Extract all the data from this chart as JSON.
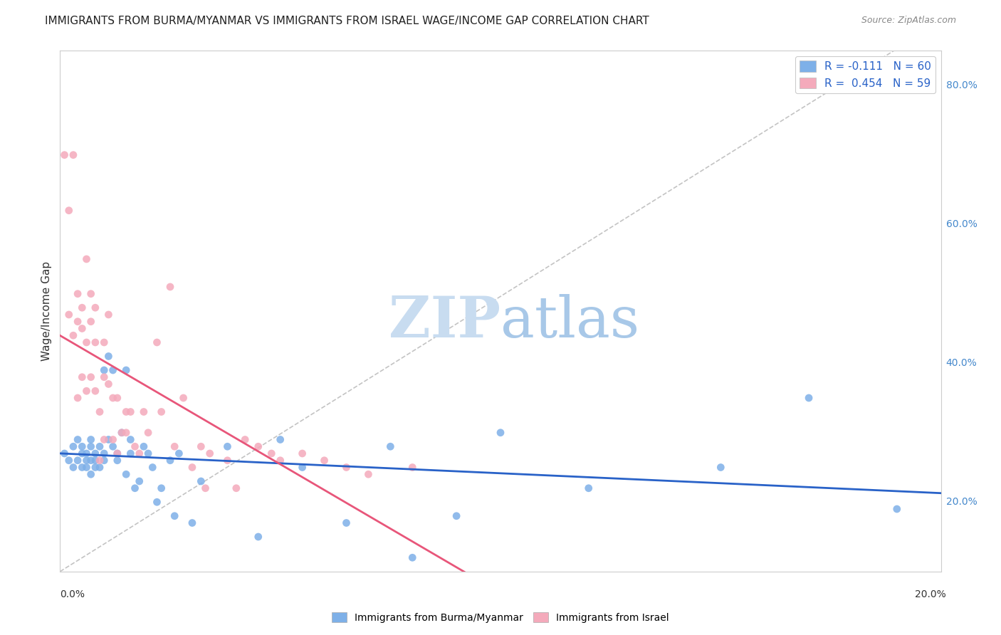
{
  "title": "IMMIGRANTS FROM BURMA/MYANMAR VS IMMIGRANTS FROM ISRAEL WAGE/INCOME GAP CORRELATION CHART",
  "source": "Source: ZipAtlas.com",
  "ylabel_label": "Wage/Income Gap",
  "legend_label_blue": "Immigrants from Burma/Myanmar",
  "legend_label_pink": "Immigrants from Israel",
  "blue_color": "#7EB0E8",
  "pink_color": "#F4AABB",
  "blue_trend_color": "#2962C8",
  "pink_trend_color": "#E8567A",
  "watermark_zip": "ZIP",
  "watermark_atlas": "atlas",
  "watermark_color": "#C8DCF0",
  "background_color": "#FFFFFF",
  "grid_color": "#CCCCCC",
  "x_min": 0.0,
  "x_max": 0.2,
  "y_min": 0.1,
  "y_max": 0.85,
  "blue_scatter_x": [
    0.001,
    0.002,
    0.003,
    0.003,
    0.004,
    0.004,
    0.005,
    0.005,
    0.005,
    0.006,
    0.006,
    0.006,
    0.007,
    0.007,
    0.007,
    0.007,
    0.008,
    0.008,
    0.008,
    0.009,
    0.009,
    0.01,
    0.01,
    0.01,
    0.011,
    0.011,
    0.012,
    0.012,
    0.013,
    0.013,
    0.014,
    0.015,
    0.015,
    0.016,
    0.016,
    0.017,
    0.018,
    0.019,
    0.02,
    0.021,
    0.022,
    0.023,
    0.025,
    0.026,
    0.027,
    0.03,
    0.032,
    0.038,
    0.045,
    0.05,
    0.055,
    0.065,
    0.075,
    0.08,
    0.09,
    0.1,
    0.12,
    0.15,
    0.17,
    0.19
  ],
  "blue_scatter_y": [
    0.27,
    0.26,
    0.28,
    0.25,
    0.29,
    0.26,
    0.27,
    0.25,
    0.28,
    0.26,
    0.25,
    0.27,
    0.28,
    0.26,
    0.24,
    0.29,
    0.27,
    0.25,
    0.26,
    0.28,
    0.25,
    0.39,
    0.27,
    0.26,
    0.41,
    0.29,
    0.39,
    0.28,
    0.27,
    0.26,
    0.3,
    0.24,
    0.39,
    0.27,
    0.29,
    0.22,
    0.23,
    0.28,
    0.27,
    0.25,
    0.2,
    0.22,
    0.26,
    0.18,
    0.27,
    0.17,
    0.23,
    0.28,
    0.15,
    0.29,
    0.25,
    0.17,
    0.28,
    0.12,
    0.18,
    0.3,
    0.22,
    0.25,
    0.35,
    0.19
  ],
  "pink_scatter_x": [
    0.001,
    0.002,
    0.002,
    0.003,
    0.003,
    0.004,
    0.004,
    0.004,
    0.005,
    0.005,
    0.005,
    0.006,
    0.006,
    0.006,
    0.007,
    0.007,
    0.007,
    0.008,
    0.008,
    0.008,
    0.009,
    0.009,
    0.01,
    0.01,
    0.01,
    0.011,
    0.011,
    0.012,
    0.012,
    0.013,
    0.013,
    0.014,
    0.015,
    0.015,
    0.016,
    0.017,
    0.018,
    0.019,
    0.02,
    0.022,
    0.023,
    0.025,
    0.026,
    0.028,
    0.03,
    0.032,
    0.033,
    0.034,
    0.038,
    0.04,
    0.042,
    0.045,
    0.048,
    0.05,
    0.055,
    0.06,
    0.065,
    0.07,
    0.08
  ],
  "pink_scatter_y": [
    0.7,
    0.62,
    0.47,
    0.7,
    0.44,
    0.5,
    0.46,
    0.35,
    0.45,
    0.48,
    0.38,
    0.55,
    0.43,
    0.36,
    0.5,
    0.46,
    0.38,
    0.48,
    0.43,
    0.36,
    0.33,
    0.26,
    0.43,
    0.38,
    0.29,
    0.47,
    0.37,
    0.35,
    0.29,
    0.35,
    0.27,
    0.3,
    0.33,
    0.3,
    0.33,
    0.28,
    0.27,
    0.33,
    0.3,
    0.43,
    0.33,
    0.51,
    0.28,
    0.35,
    0.25,
    0.28,
    0.22,
    0.27,
    0.26,
    0.22,
    0.29,
    0.28,
    0.27,
    0.26,
    0.27,
    0.26,
    0.25,
    0.24,
    0.25
  ]
}
